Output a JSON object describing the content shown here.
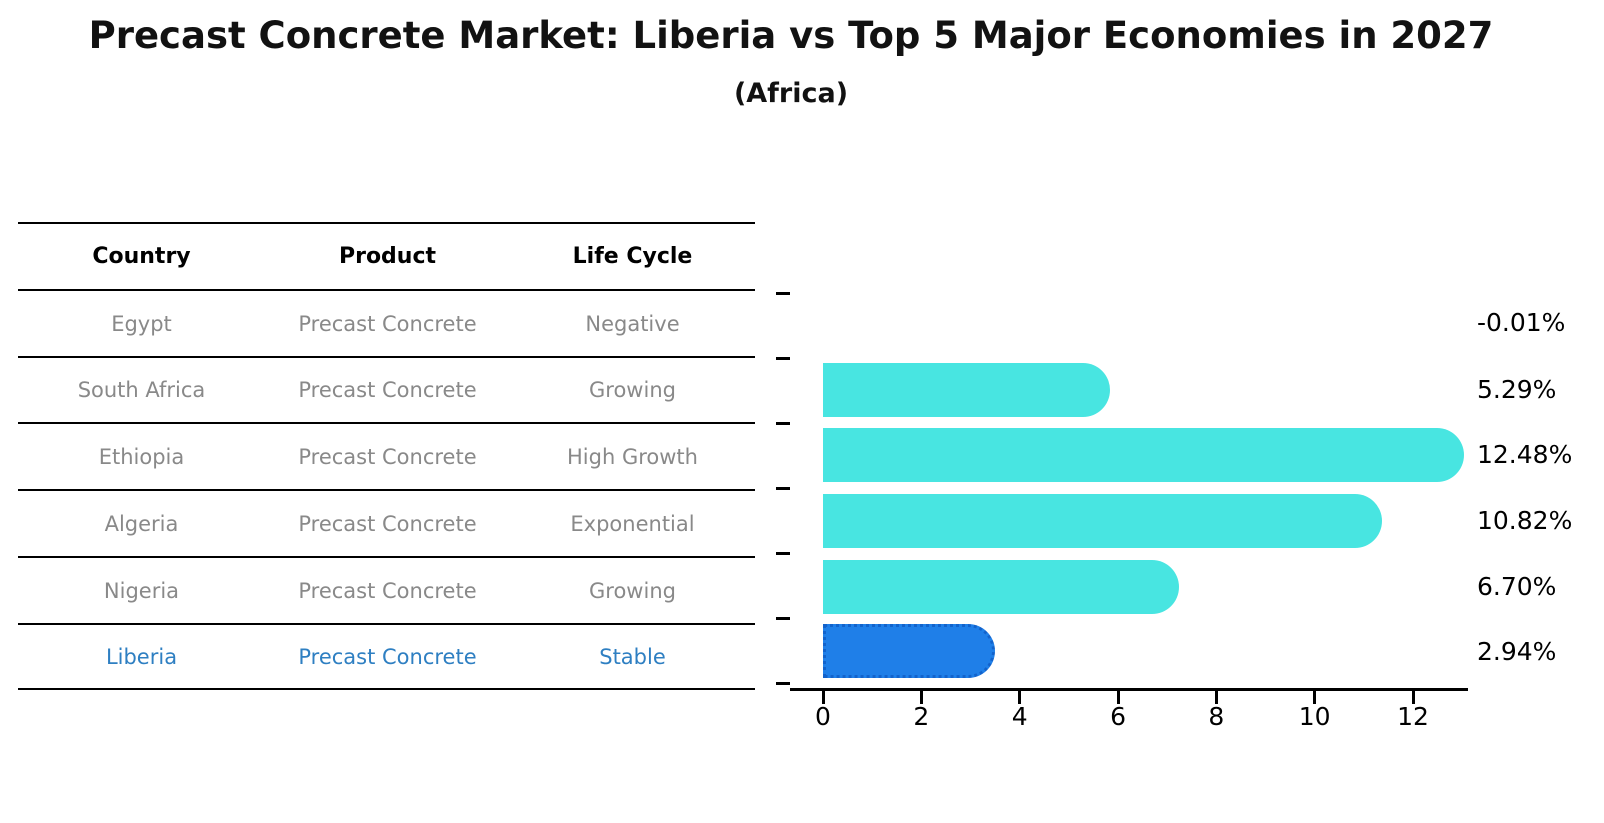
{
  "title": "Precast Concrete Market: Liberia vs Top 5 Major Economies in 2027",
  "subtitle": "(Africa)",
  "table": {
    "headers": {
      "country": "Country",
      "product": "Product",
      "life_cycle": "Life Cycle"
    },
    "rows": [
      {
        "country": "Egypt",
        "product": "Precast Concrete",
        "life_cycle": "Negative"
      },
      {
        "country": "South Africa",
        "product": "Precast Concrete",
        "life_cycle": "Growing"
      },
      {
        "country": "Ethiopia",
        "product": "Precast Concrete",
        "life_cycle": "High Growth"
      },
      {
        "country": "Algeria",
        "product": "Precast Concrete",
        "life_cycle": "Exponential"
      },
      {
        "country": "Nigeria",
        "product": "Precast Concrete",
        "life_cycle": "Growing"
      },
      {
        "country": "Liberia",
        "product": "Precast Concrete",
        "life_cycle": "Stable"
      }
    ],
    "highlight_row": "Liberia"
  },
  "chart_data": {
    "type": "bar",
    "orientation": "horizontal",
    "categories": [
      "Egypt",
      "South Africa",
      "Ethiopia",
      "Algeria",
      "Nigeria",
      "Liberia"
    ],
    "values": [
      -0.01,
      5.29,
      12.48,
      10.82,
      6.7,
      2.94
    ],
    "value_labels": [
      "-0.01%",
      "5.29%",
      "12.48%",
      "10.82%",
      "6.70%",
      "2.94%"
    ],
    "x_ticks": [
      0,
      2,
      4,
      6,
      8,
      10,
      12
    ],
    "xlim": [
      0,
      13.1
    ],
    "grid": false,
    "legend": false,
    "highlight_category": "Liberia",
    "colors": {
      "bar_default": "#48E5E1",
      "bar_highlight": "#1F7FE8",
      "bar_highlight_border": "#1263CC",
      "highlight_text": "#2E7FC2",
      "table_text": "#898989",
      "axis": "#000000"
    }
  }
}
